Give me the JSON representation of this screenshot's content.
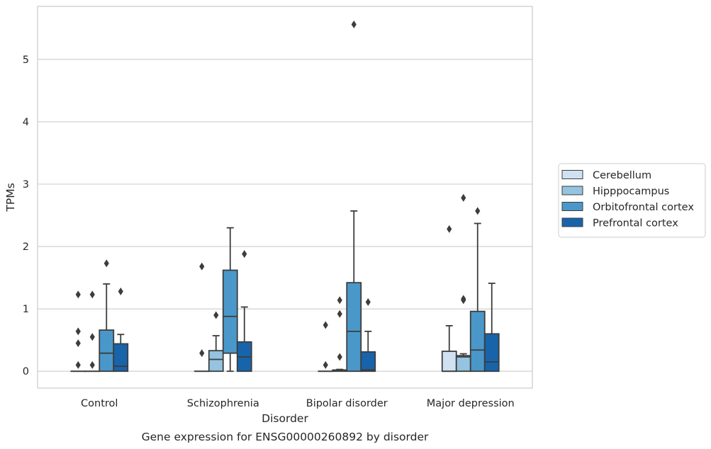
{
  "chart_data": {
    "type": "box",
    "caption": "Gene expression for ENSG00000260892 by disorder",
    "xlabel": "Disorder",
    "ylabel": "TPMs",
    "ylim": [
      -0.27,
      5.85
    ],
    "yticks": [
      0,
      1,
      2,
      3,
      4,
      5
    ],
    "grid": "horizontal",
    "legend_position": "right",
    "categories": [
      "Control",
      "Schizophrenia",
      "Bipolar disorder",
      "Major depression"
    ],
    "series": [
      {
        "name": "Cerebellum",
        "color": "#d0e1f2",
        "boxes": [
          {
            "min": 0,
            "q1": 0,
            "median": 0,
            "q3": 0,
            "max": 0,
            "outliers": [
              0.1,
              0.45,
              0.64,
              1.23
            ]
          },
          {
            "min": 0,
            "q1": 0,
            "median": 0,
            "q3": 0,
            "max": 0,
            "outliers": [
              0.29,
              1.68
            ]
          },
          {
            "min": 0,
            "q1": 0,
            "median": 0,
            "q3": 0,
            "max": 0,
            "outliers": [
              0.1,
              0.74
            ]
          },
          {
            "min": 0,
            "q1": 0,
            "median": 0,
            "q3": 0.32,
            "max": 0.73,
            "outliers": [
              2.28
            ]
          }
        ]
      },
      {
        "name": "Hipppocampus",
        "color": "#94c4df",
        "boxes": [
          {
            "min": 0,
            "q1": 0,
            "median": 0,
            "q3": 0,
            "max": 0,
            "outliers": [
              0.1,
              0.55,
              1.23
            ]
          },
          {
            "min": 0,
            "q1": 0,
            "median": 0.19,
            "q3": 0.33,
            "max": 0.57,
            "outliers": [
              0.9
            ]
          },
          {
            "min": 0,
            "q1": 0,
            "median": 0.01,
            "q3": 0.02,
            "max": 0.03,
            "outliers": [
              0.23,
              0.92,
              1.14
            ]
          },
          {
            "min": 0,
            "q1": 0,
            "median": 0.23,
            "q3": 0.25,
            "max": 0.28,
            "outliers": [
              1.14,
              1.16,
              2.78
            ]
          }
        ]
      },
      {
        "name": "Orbitofrontal cortex",
        "color": "#4a98c9",
        "boxes": [
          {
            "min": 0,
            "q1": 0,
            "median": 0.29,
            "q3": 0.66,
            "max": 1.4,
            "outliers": [
              1.73
            ]
          },
          {
            "min": 0,
            "q1": 0.29,
            "median": 0.88,
            "q3": 1.62,
            "max": 2.3,
            "outliers": []
          },
          {
            "min": 0,
            "q1": 0,
            "median": 0.64,
            "q3": 1.42,
            "max": 2.57,
            "outliers": [
              5.56
            ]
          },
          {
            "min": 0,
            "q1": 0,
            "median": 0.34,
            "q3": 0.96,
            "max": 2.37,
            "outliers": [
              2.57
            ]
          }
        ]
      },
      {
        "name": "Prefrontal cortex",
        "color": "#1764ab",
        "boxes": [
          {
            "min": 0,
            "q1": 0,
            "median": 0.08,
            "q3": 0.44,
            "max": 0.59,
            "outliers": [
              1.28
            ]
          },
          {
            "min": 0,
            "q1": 0,
            "median": 0.23,
            "q3": 0.47,
            "max": 1.03,
            "outliers": [
              1.88
            ]
          },
          {
            "min": 0,
            "q1": 0,
            "median": 0.02,
            "q3": 0.31,
            "max": 0.64,
            "outliers": [
              1.11
            ]
          },
          {
            "min": 0,
            "q1": 0,
            "median": 0.15,
            "q3": 0.6,
            "max": 1.41,
            "outliers": []
          }
        ]
      }
    ]
  }
}
